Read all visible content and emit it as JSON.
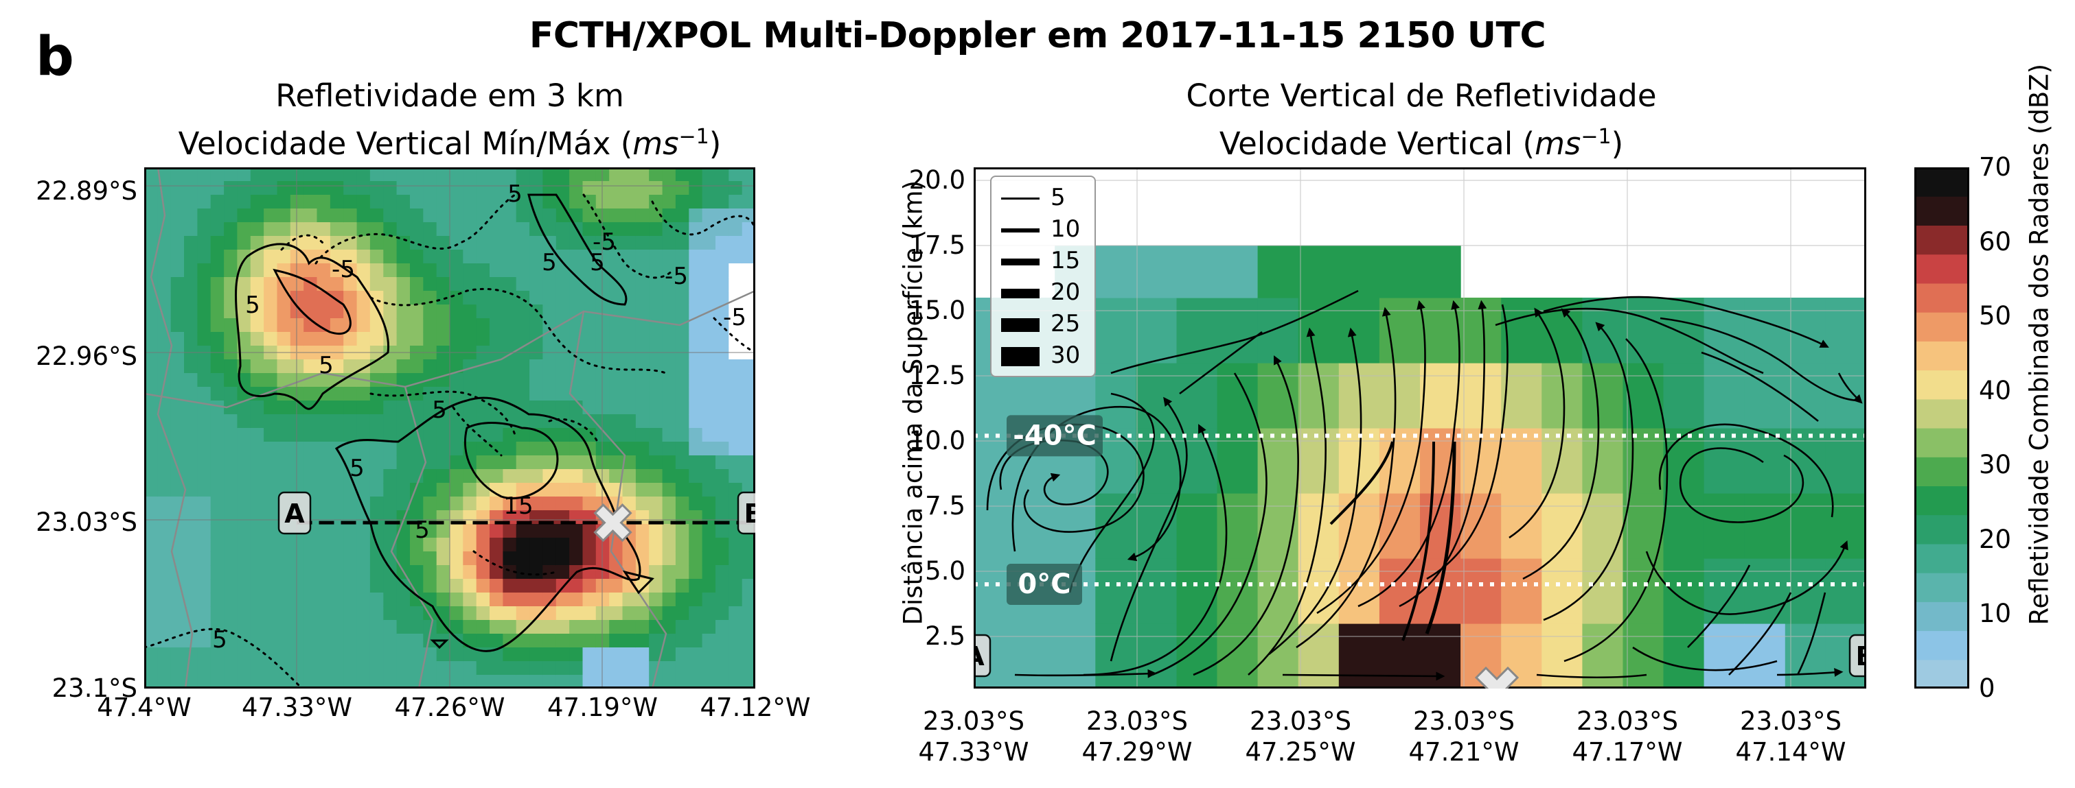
{
  "figure": {
    "panel_letter": "b",
    "title": "FCTH/XPOL Multi-Doppler em 2017-11-15 2150 UTC"
  },
  "chart_data": [
    {
      "type": "heatmap",
      "name": "map",
      "title_line1": "Refletividade em 3 km",
      "title_line2": "Velocidade Vertical Mín/Máx (",
      "title_unit": "ms",
      "title_unit_exp": "−1",
      "title_close": ")",
      "x_ticks": [
        "47.4°W",
        "47.33°W",
        "47.26°W",
        "47.19°W",
        "47.12°W"
      ],
      "x_tick_values": [
        -47.4,
        -47.33,
        -47.26,
        -47.19,
        -47.12
      ],
      "y_ticks": [
        "22.89°S",
        "22.96°S",
        "23.03°S",
        "23.1°S"
      ],
      "y_tick_values": [
        -22.89,
        -22.96,
        -23.03,
        -23.1
      ],
      "xlim": [
        -47.4,
        -47.12
      ],
      "ylim": [
        -23.1,
        -22.88
      ],
      "contour_labels": [
        "5",
        "5",
        "5",
        "5",
        "5",
        "5",
        "5",
        "-5",
        "-5",
        "-5",
        "-5",
        "15",
        "5",
        "5"
      ],
      "contour_levels": [
        -5,
        5,
        15
      ],
      "cross_section": {
        "start_label": "A",
        "end_label": "B",
        "lat": -23.03,
        "lon_start": -47.33,
        "lon_end": -47.12
      },
      "radar_marker": {
        "lon": -47.19,
        "lat": -23.03
      }
    },
    {
      "type": "heatmap",
      "name": "vertical-section",
      "title_line1": "Corte Vertical de Refletividade",
      "title_line2": "Velocidade Vertical (",
      "title_unit": "ms",
      "title_unit_exp": "−1",
      "title_close": ")",
      "ylabel": "Distância acima da Superfície (km)",
      "ylim": [
        0.5,
        20.5
      ],
      "y_ticks": [
        "2.5",
        "5.0",
        "7.5",
        "10.0",
        "12.5",
        "15.0",
        "17.5",
        "20.0"
      ],
      "y_tick_values": [
        2.5,
        5.0,
        7.5,
        10.0,
        12.5,
        15.0,
        17.5,
        20.0
      ],
      "x_tick_lat": [
        "23.03°S",
        "23.03°S",
        "23.03°S",
        "23.03°S",
        "23.03°S",
        "23.03°S"
      ],
      "x_tick_lon": [
        "47.33°W",
        "47.29°W",
        "47.25°W",
        "47.21°W",
        "47.17°W",
        "47.14°W"
      ],
      "isotherms": [
        {
          "label": "-40°C",
          "height_km": 10.2
        },
        {
          "label": "0°C",
          "height_km": 4.5
        }
      ],
      "start_label": "A",
      "end_label": "B",
      "legend": {
        "placement": "top-left",
        "entries": [
          "5",
          "10",
          "15",
          "20",
          "25",
          "30"
        ]
      },
      "radar_marker": {
        "lon": -47.21,
        "height_km": 0.5
      }
    }
  ],
  "colorbar": {
    "label": "Refletividade Combinada dos Radares (dBZ)",
    "ticks": [
      "0",
      "10",
      "20",
      "30",
      "40",
      "50",
      "60",
      "70"
    ],
    "range": [
      0,
      70
    ],
    "colors": [
      "#9ecae1",
      "#8cc4e6",
      "#73b9c9",
      "#5ab4ac",
      "#41ab8f",
      "#2b9f6b",
      "#239b50",
      "#4daa4f",
      "#8ac066",
      "#c4cf7e",
      "#f2dd8c",
      "#f6c37d",
      "#ee9a66",
      "#e06f54",
      "#c94343",
      "#8a2a2a",
      "#2a1414",
      "#111111"
    ]
  }
}
